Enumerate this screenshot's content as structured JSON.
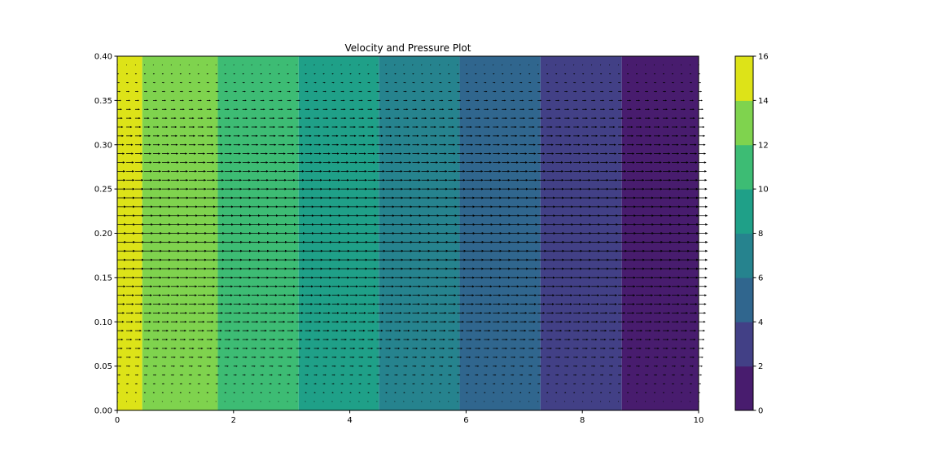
{
  "chart_data": {
    "type": "heatmap",
    "title": "Velocity and Pressure Plot",
    "xlabel": "",
    "ylabel": "",
    "xlim": [
      0,
      10
    ],
    "ylim": [
      0,
      0.4
    ],
    "x_ticks": [
      "0",
      "2",
      "4",
      "6",
      "8",
      "10"
    ],
    "y_ticks": [
      "0.00",
      "0.05",
      "0.10",
      "0.15",
      "0.20",
      "0.25",
      "0.30",
      "0.35",
      "0.40"
    ],
    "contour_bands": [
      {
        "x_start": 0.0,
        "x_end": 0.43,
        "level": [
          14,
          16
        ],
        "color": "#dde318"
      },
      {
        "x_start": 0.43,
        "x_end": 1.73,
        "level": [
          12,
          14
        ],
        "color": "#7fd34e"
      },
      {
        "x_start": 1.73,
        "x_end": 3.12,
        "level": [
          10,
          12
        ],
        "color": "#3dbc74"
      },
      {
        "x_start": 3.12,
        "x_end": 4.5,
        "level": [
          8,
          10
        ],
        "color": "#1fa088"
      },
      {
        "x_start": 4.5,
        "x_end": 5.89,
        "level": [
          6,
          8
        ],
        "color": "#26838e"
      },
      {
        "x_start": 5.89,
        "x_end": 7.28,
        "level": [
          4,
          6
        ],
        "color": "#30668e"
      },
      {
        "x_start": 7.28,
        "x_end": 8.68,
        "level": [
          2,
          4
        ],
        "color": "#424086"
      },
      {
        "x_start": 8.68,
        "x_end": 10.0,
        "level": [
          0,
          2
        ],
        "color": "#481c6e"
      }
    ],
    "colorbar": {
      "ticks": [
        "0",
        "2",
        "4",
        "6",
        "8",
        "10",
        "12",
        "14",
        "16"
      ],
      "range": [
        0,
        16
      ],
      "colors": [
        "#481c6e",
        "#424086",
        "#30668e",
        "#26838e",
        "#1fa088",
        "#3dbc74",
        "#7fd34e",
        "#dde318"
      ]
    },
    "quiver": {
      "grid_cols": 66,
      "grid_rows": 41,
      "y_start": 0.0,
      "y_end": 0.4,
      "x_start": 0.0,
      "x_end": 10.0,
      "direction": "positive-x",
      "profile": "parabolic",
      "color": "#000000"
    }
  }
}
